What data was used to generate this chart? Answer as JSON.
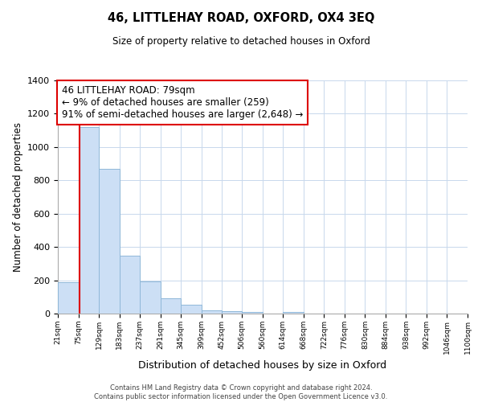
{
  "title": "46, LITTLEHAY ROAD, OXFORD, OX4 3EQ",
  "subtitle": "Size of property relative to detached houses in Oxford",
  "xlabel": "Distribution of detached houses by size in Oxford",
  "ylabel": "Number of detached properties",
  "bin_edges": [
    21,
    75,
    129,
    183,
    237,
    291,
    345,
    399,
    452,
    506,
    560,
    614,
    668,
    722,
    776,
    830,
    884,
    938,
    992,
    1046,
    1100
  ],
  "bin_labels": [
    "21sqm",
    "75sqm",
    "129sqm",
    "183sqm",
    "237sqm",
    "291sqm",
    "345sqm",
    "399sqm",
    "452sqm",
    "506sqm",
    "560sqm",
    "614sqm",
    "668sqm",
    "722sqm",
    "776sqm",
    "830sqm",
    "884sqm",
    "938sqm",
    "992sqm",
    "1046sqm",
    "1100sqm"
  ],
  "counts": [
    190,
    1120,
    870,
    350,
    195,
    90,
    55,
    20,
    15,
    10,
    0,
    10,
    0,
    0,
    0,
    0,
    0,
    0,
    0,
    0
  ],
  "bar_color": "#ccdff5",
  "bar_edge_color": "#90b8d8",
  "vline_x": 79,
  "vline_color": "#dd0000",
  "ylim": [
    0,
    1400
  ],
  "yticks": [
    0,
    200,
    400,
    600,
    800,
    1000,
    1200,
    1400
  ],
  "annotation_text": "46 LITTLEHAY ROAD: 79sqm\n← 9% of detached houses are smaller (259)\n91% of semi-detached houses are larger (2,648) →",
  "annotation_box_color": "#ffffff",
  "annotation_box_edge": "#dd0000",
  "footer_line1": "Contains HM Land Registry data © Crown copyright and database right 2024.",
  "footer_line2": "Contains public sector information licensed under the Open Government Licence v3.0.",
  "background_color": "#ffffff",
  "grid_color": "#c8d8ec"
}
